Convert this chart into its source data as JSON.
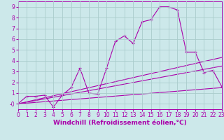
{
  "background_color": "#cce8ea",
  "line_color": "#aa00aa",
  "grid_color": "#aacccc",
  "xlabel": "Windchill (Refroidissement éolien,°C)",
  "xlim": [
    0,
    23
  ],
  "ylim": [
    -0.5,
    9.5
  ],
  "xticks": [
    0,
    1,
    2,
    3,
    4,
    5,
    6,
    7,
    8,
    9,
    10,
    11,
    12,
    13,
    14,
    15,
    16,
    17,
    18,
    19,
    20,
    21,
    22,
    23
  ],
  "yticks": [
    0,
    1,
    2,
    3,
    4,
    5,
    6,
    7,
    8,
    9
  ],
  "ytick_labels": [
    "-0",
    "1",
    "2",
    "3",
    "4",
    "5",
    "6",
    "7",
    "8",
    "9"
  ],
  "line1_x": [
    0,
    1,
    2,
    3,
    4,
    5,
    6,
    7,
    8,
    9,
    10,
    11,
    12,
    13,
    14,
    15,
    16,
    17,
    18,
    19,
    20,
    21,
    22,
    23
  ],
  "line1_y": [
    0.0,
    0.7,
    0.7,
    0.8,
    -0.3,
    0.8,
    1.5,
    3.3,
    1.0,
    0.9,
    3.3,
    5.8,
    6.3,
    5.6,
    7.6,
    7.8,
    9.0,
    9.0,
    8.7,
    4.8,
    4.8,
    2.9,
    3.1,
    1.6
  ],
  "line2_x": [
    0,
    23
  ],
  "line2_y": [
    0.0,
    4.3
  ],
  "line3_x": [
    0,
    23
  ],
  "line3_y": [
    0.0,
    3.5
  ],
  "line4_x": [
    0,
    23
  ],
  "line4_y": [
    0.0,
    1.5
  ],
  "font_size": 5.5,
  "xlabel_fontsize": 6.5,
  "tick_font_size": 5.5,
  "marker": "+",
  "linewidth": 0.8,
  "markersize": 2.5
}
